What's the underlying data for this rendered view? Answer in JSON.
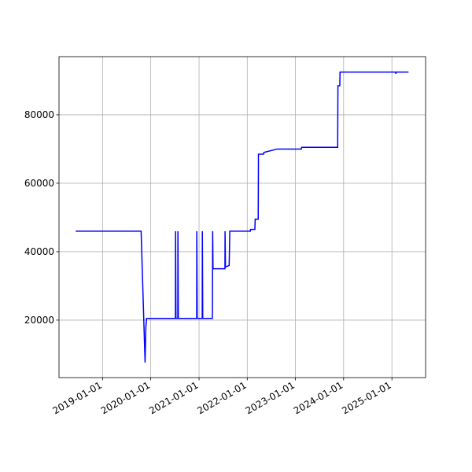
{
  "chart_data": {
    "type": "line",
    "color": "#0000ff",
    "grid": true,
    "x": [
      "2018-06-12",
      "2019-10-20",
      "2019-11-19",
      "2019-11-25",
      "2019-12-01",
      "2020-07-06",
      "2020-07-07",
      "2020-07-10",
      "2020-07-24",
      "2020-07-25",
      "2020-07-28",
      "2020-12-14",
      "2020-12-15",
      "2020-12-18",
      "2021-01-25",
      "2021-01-26",
      "2021-01-29",
      "2021-04-12",
      "2021-04-14",
      "2021-04-17",
      "2021-07-16",
      "2021-07-17",
      "2021-07-20",
      "2021-08-17",
      "2021-08-22",
      "2022-01-25",
      "2022-01-26",
      "2022-02-28",
      "2022-03-02",
      "2022-03-25",
      "2022-03-27",
      "2022-05-05",
      "2022-05-07",
      "2022-08-16",
      "2023-02-15",
      "2023-02-17",
      "2023-11-17",
      "2023-11-19",
      "2023-12-03",
      "2023-12-05",
      "2025-01-29",
      "2025-01-31",
      "2025-02-02",
      "2025-05-07"
    ],
    "values": [
      46000,
      46000,
      7600,
      18000,
      20500,
      20500,
      46000,
      20500,
      20500,
      46000,
      20500,
      20500,
      46000,
      20500,
      20500,
      46000,
      20500,
      20500,
      46000,
      35000,
      35000,
      46000,
      35500,
      36000,
      46000,
      46000,
      46500,
      46500,
      49500,
      49500,
      68500,
      68500,
      69000,
      70000,
      70000,
      70500,
      70500,
      88500,
      88500,
      92500,
      92500,
      92000,
      92500,
      92500
    ],
    "xlim": [
      "2018-02-05",
      "2025-09-13"
    ],
    "xticks": [
      "2019-01-01",
      "2020-01-01",
      "2021-01-01",
      "2022-01-01",
      "2023-01-01",
      "2024-01-01",
      "2025-01-01"
    ],
    "ylim": [
      3200,
      97000
    ],
    "yticks": [
      20000,
      40000,
      60000,
      80000
    ]
  }
}
